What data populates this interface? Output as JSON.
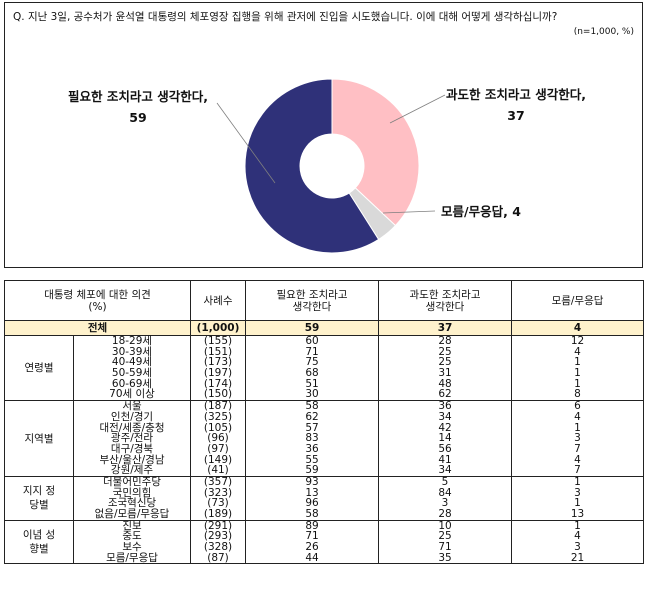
{
  "question": "Q. 지난 3일, 공수처가 윤석열 대통령의 체포영장 집행을 위해 관저에 진입을 시도했습니다. 이에 대해 어떻게 생각하십니까?",
  "sample_note": "(n=1,000, %)",
  "chart_data": {
    "type": "pie",
    "style": "donut",
    "slices": [
      {
        "label": "과도한 조치라고 생각한다,",
        "value": 37,
        "color": "#ffbfc4"
      },
      {
        "label": "모름/무응답,",
        "value": 4,
        "color": "#d9d9d9"
      },
      {
        "label": "필요한 조치라고 생각한다,",
        "value": 59,
        "color": "#2f3179"
      }
    ]
  },
  "table": {
    "headers": {
      "opinion": "대통령 체포에 대한 의견",
      "opinion_unit": "(%)",
      "cases": "사례수",
      "necessary": "필요한 조치라고 생각한다",
      "excessive": "과도한 조치라고 생각한다",
      "dontknow": "모름/무응답"
    },
    "total": {
      "label": "전체",
      "cases": "(1,000)",
      "necessary": "59",
      "excessive": "37",
      "dontknow": "4"
    },
    "groups": [
      {
        "name": "연령별",
        "labels": [
          "18-29세",
          "30-39세",
          "40-49세",
          "50-59세",
          "60-69세",
          "70세 이상"
        ],
        "cases": [
          "(155)",
          "(151)",
          "(173)",
          "(197)",
          "(174)",
          "(150)"
        ],
        "necessary": [
          "60",
          "71",
          "75",
          "68",
          "51",
          "30"
        ],
        "excessive": [
          "28",
          "25",
          "25",
          "31",
          "48",
          "62"
        ],
        "dontknow": [
          "12",
          "4",
          "1",
          "1",
          "1",
          "8"
        ]
      },
      {
        "name": "지역별",
        "labels": [
          "서울",
          "인천/경기",
          "대전/세종/충청",
          "광주/전라",
          "대구/경북",
          "부산/울산/경남",
          "강원/제주"
        ],
        "cases": [
          "(187)",
          "(325)",
          "(105)",
          "(96)",
          "(97)",
          "(149)",
          "(41)"
        ],
        "necessary": [
          "58",
          "62",
          "57",
          "83",
          "36",
          "55",
          "59"
        ],
        "excessive": [
          "36",
          "34",
          "42",
          "14",
          "56",
          "41",
          "34"
        ],
        "dontknow": [
          "6",
          "4",
          "1",
          "3",
          "7",
          "4",
          "7"
        ]
      },
      {
        "name": "지지 정당별",
        "labels": [
          "더불어민주당",
          "국민의힘",
          "조국혁신당",
          "없음/모름/무응답"
        ],
        "cases": [
          "(357)",
          "(323)",
          "(73)",
          "(189)"
        ],
        "necessary": [
          "93",
          "13",
          "96",
          "58"
        ],
        "excessive": [
          "5",
          "84",
          "3",
          "28"
        ],
        "dontknow": [
          "1",
          "3",
          "1",
          "13"
        ]
      },
      {
        "name": "이념 성향별",
        "labels": [
          "진보",
          "중도",
          "보수",
          "모름/무응답"
        ],
        "cases": [
          "(291)",
          "(293)",
          "(328)",
          "(87)"
        ],
        "necessary": [
          "89",
          "71",
          "26",
          "44"
        ],
        "excessive": [
          "10",
          "25",
          "71",
          "35"
        ],
        "dontknow": [
          "1",
          "4",
          "3",
          "21"
        ]
      }
    ]
  }
}
